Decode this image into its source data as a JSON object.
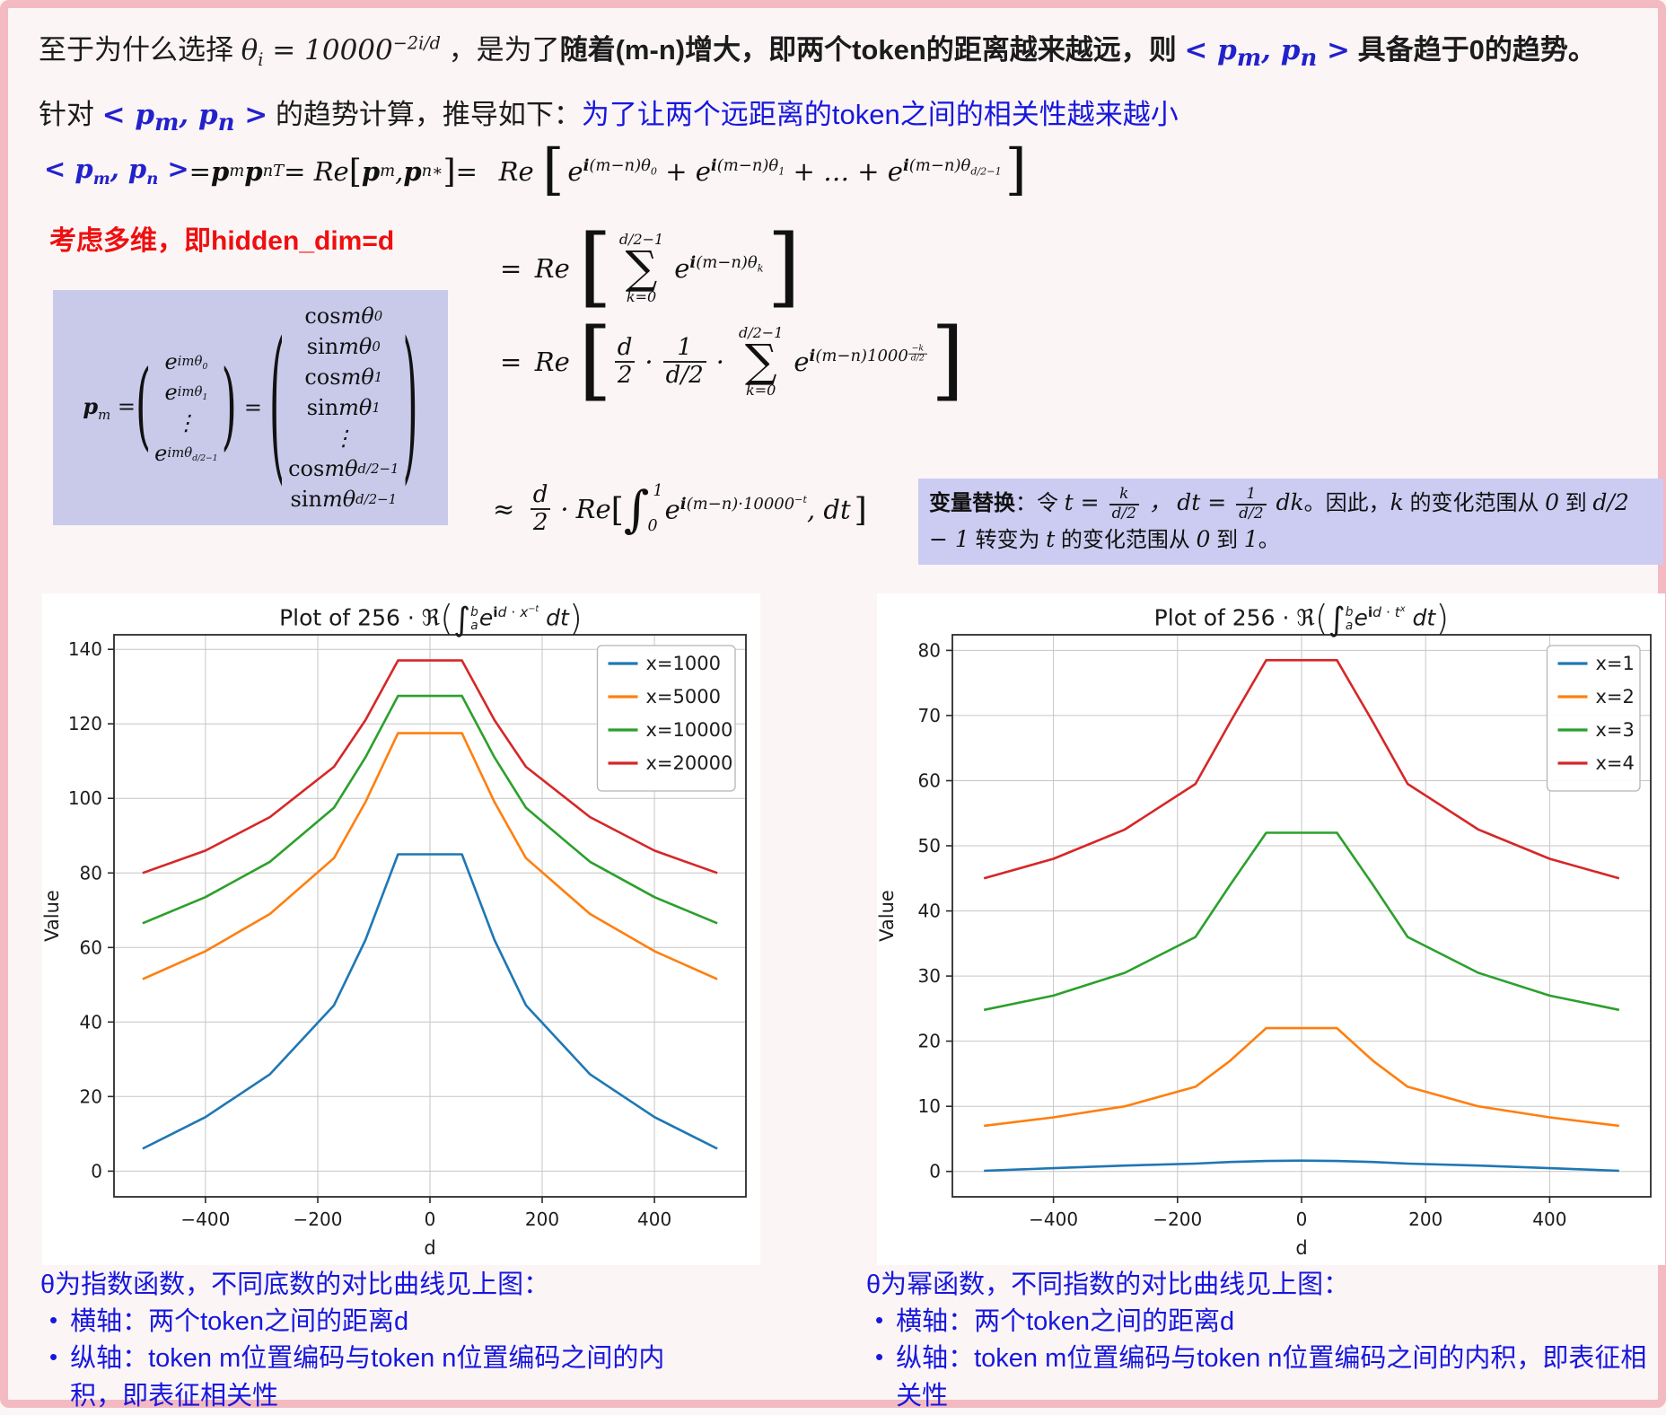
{
  "colors": {
    "frame_pink": "#f3bac2",
    "page_bg": "#fcf5f6",
    "highlight_lavender": "#c9c9ea",
    "note_lavender": "#ccccf2",
    "text_blue": "#1717dd",
    "label_red": "#ee0f0f",
    "math_blue": "#2222cc"
  },
  "intro": {
    "p1_html": "至于为什么选择 <span class='m'>θ<sub>i</sub> = 10000<sup>−2i/d</sup></span> ，是为了<b>随着(m-n)增大，即两个token的距离越来越远，则 <span class='mblue'>&lt; p<sub>m</sub>, p<sub>n</sub> &gt;</span> 具备趋于0的趋势。</b>",
    "p2_html": "针对 <span class='mblue'>&lt; p<sub>m</sub>, p<sub>n</sub> &gt;</span> 的趋势计算，推导如下：<span class='blue'>为了让两个远距离的token之间的相关性越来越小</span>"
  },
  "derivation": {
    "row1_html": "<span class='mblue'>&lt; <b>p</b><sub>m</sub>, <b>p</b><sub>n</sub> &gt;</span> = <b>p</b><sub>m</sub><b>p</b><sub>n</sub><sup>T</sup> = Re<span class='mb'>[</span><b>p</b><sub>m</sub>, <b>p</b><sub>n</sub><sup>∗</sup><span class='mb'>]</span> = &#8194;Re&#8196;<span class='gb'>[</span><span class='gbi'>e<sup><b>i</b>(m−n)θ<sub>0</sub></sup> + e<sup><b>i</b>(m−n)θ<sub>1</sub></sup> + … + e<sup><b>i</b>(m−n)θ<sub>d/2−1</sub></sup></span><span class='gb'>]</span>",
    "multidim_label": "考虑多维，即hidden_dim=d",
    "row2_html": "=&#8194;Re&#8196;<span class='gb2'>[</span><span class='sum'><span class='lim'>d/2−1</span><span class='sig'>∑</span><span class='lim'>k=0</span></span><span class='gbi'>e<sup><b>i</b>(m−n)θ<sub>k</sub></sup></span><span class='gb2'>]</span>",
    "row3_html": "=&#8194;Re&#8196;<span class='gb2'>[</span><span class='frac'><span class='num'>d</span><span class='den'>2</span></span><span class='cdot'>·</span><span class='frac'><span class='num'>1</span><span class='den'>d/2</span></span><span class='cdot'>·</span><span class='sum'><span class='lim'>d/2−1</span><span class='sig'>∑</span><span class='lim'>k=0</span></span><span class='gbi'>e<sup><b>i</b>(m−n)1000<span class='tfrac'><span class='num'>−k</span><span class='den'>d/2</span></span></sup></span><span class='gb2'>]</span>",
    "row4_html": "≈&#8194;<span class='frac'><span class='num'>d</span><span class='den'>2</span></span><span class='cdot'>·</span>Re<span class='mb'>[</span><span class='intg'>∫</span><span class='ilims'><span class='iu'>1</span><span class='il'>0</span></span><span class='gbi'>e<sup><b>i</b>(m−n)·10000<sup class='ss'>−t</sup></sup>, dt</span><span class='mb'>]</span>",
    "pm_lhs_html": "<b>p</b><sub>m</sub> =",
    "pm_col1": [
      "e<sup>imθ<sub>0</sub></sup>",
      "e<sup>imθ<sub>1</sub></sup>",
      "⋮",
      "e<sup>imθ<sub>d/2−1</sub></sup>"
    ],
    "pm_col2": [
      "<span class='rm'>cos</span> mθ<sub>0</sub>",
      "<span class='rm'>sin</span> mθ<sub>0</sub>",
      "<span class='rm'>cos</span> mθ<sub>1</sub>",
      "<span class='rm'>sin</span> mθ<sub>1</sub>",
      "⋮",
      "<span class='rm'>cos</span> mθ<sub>d/2−1</sub>",
      "<span class='rm'>sin</span> mθ<sub>d/2−1</sub>"
    ],
    "note_html": "<b>变量替换</b>：令 <span class='m'>t = <span class='tfrac2'><span class='num'>k</span><span class='den'>d/2</span></span> ，&#8197;dt = <span class='tfrac2'><span class='num'>1</span><span class='den'>d/2</span></span> dk</span>。因此，<span class='m'>k</span> 的变化范围从 <span class='m'>0</span> 到 <span class='m'>d/2 − 1</span> 转变为 <span class='m'>t</span> 的变化范围从 <span class='m'>0</span> 到 <span class='m'>1</span>。"
  },
  "captions": {
    "left": {
      "heading": "θ为指数函数，不同底数的对比曲线见上图：",
      "bullets": [
        "横轴：两个token之间的距离d",
        "纵轴：token m位置编码与token n位置编码之间的内积，即表征相关性"
      ]
    },
    "right": {
      "heading": "θ为幂函数，不同指数的对比曲线见上图：",
      "bullets": [
        "横轴：两个token之间的距离d",
        "纵轴：token m位置编码与token n位置编码之间的内积，即表征相关性"
      ]
    }
  },
  "chart_data": [
    {
      "type": "line",
      "title_html": "Plot of 256 · ℜ<span class='bp'>(</span><span class='ii'>∫</span><span class='ilim'><span>b</span><span>a</span></span><i>e</i><sup><b>i</b><i>d</i> · <i>x</i><sup>−<i>t</i></sup></sup> <i>dt</i><span class='bp'>)</span>",
      "xlabel": "d",
      "ylabel": "Value",
      "x": [
        -512,
        -400,
        -285,
        -171,
        -115,
        -57,
        0,
        57,
        115,
        171,
        285,
        400,
        512
      ],
      "series": [
        {
          "name": "x=1000",
          "color": "#1f77b4",
          "values": [
            6,
            14.5,
            26,
            44.5,
            62,
            85,
            85,
            85,
            62,
            44.5,
            26,
            14.5,
            6
          ]
        },
        {
          "name": "x=5000",
          "color": "#ff7f0e",
          "values": [
            51.5,
            59,
            69,
            84,
            99,
            117.5,
            117.5,
            117.5,
            99,
            84,
            69,
            59,
            51.5
          ]
        },
        {
          "name": "x=10000",
          "color": "#2ca02c",
          "values": [
            66.5,
            73.5,
            83,
            97.5,
            111,
            127.5,
            127.5,
            127.5,
            111,
            97.5,
            83,
            73.5,
            66.5
          ]
        },
        {
          "name": "x=20000",
          "color": "#d62728",
          "values": [
            80,
            86,
            95,
            108.5,
            121,
            137,
            137,
            137,
            121,
            108.5,
            95,
            86,
            80
          ]
        }
      ],
      "xticks": [
        -400,
        -200,
        0,
        200,
        400
      ],
      "yticks": [
        0,
        20,
        40,
        60,
        80,
        100,
        120,
        140
      ],
      "xlim": [
        -563,
        563
      ],
      "ylim": [
        -6.9,
        143.9
      ],
      "grid": true,
      "legend_position": "upper right"
    },
    {
      "type": "line",
      "title_html": "Plot of 256 · ℜ<span class='bp'>(</span><span class='ii'>∫</span><span class='ilim'><span>b</span><span>a</span></span><i>e</i><sup><b>i</b><i>d</i> · <i>t</i><sup><i>x</i></sup></sup> <i>dt</i><span class='bp'>)</span>",
      "xlabel": "d",
      "ylabel": "Value",
      "x": [
        -512,
        -400,
        -285,
        -171,
        -115,
        -57,
        0,
        57,
        115,
        171,
        285,
        400,
        512
      ],
      "series": [
        {
          "name": "x=1",
          "color": "#1f77b4",
          "values": [
            0.1,
            0.5,
            0.9,
            1.2,
            1.45,
            1.6,
            1.65,
            1.6,
            1.45,
            1.2,
            0.9,
            0.5,
            0.1
          ]
        },
        {
          "name": "x=2",
          "color": "#ff7f0e",
          "values": [
            7,
            8.3,
            10,
            13,
            17,
            22,
            22,
            22,
            17,
            13,
            10,
            8.3,
            7
          ]
        },
        {
          "name": "x=3",
          "color": "#2ca02c",
          "values": [
            24.8,
            27,
            30.5,
            36,
            44,
            52,
            52,
            52,
            44,
            36,
            30.5,
            27,
            24.8
          ]
        },
        {
          "name": "x=4",
          "color": "#d62728",
          "values": [
            45,
            48,
            52.5,
            59.5,
            69,
            78.5,
            78.5,
            78.5,
            69,
            59.5,
            52.5,
            48,
            45
          ]
        }
      ],
      "xticks": [
        -400,
        -200,
        0,
        200,
        400
      ],
      "yticks": [
        0,
        10,
        20,
        30,
        40,
        50,
        60,
        70,
        80
      ],
      "xlim": [
        -563,
        563
      ],
      "ylim": [
        -3.9,
        82.4
      ],
      "grid": true,
      "legend_position": "upper right"
    }
  ]
}
